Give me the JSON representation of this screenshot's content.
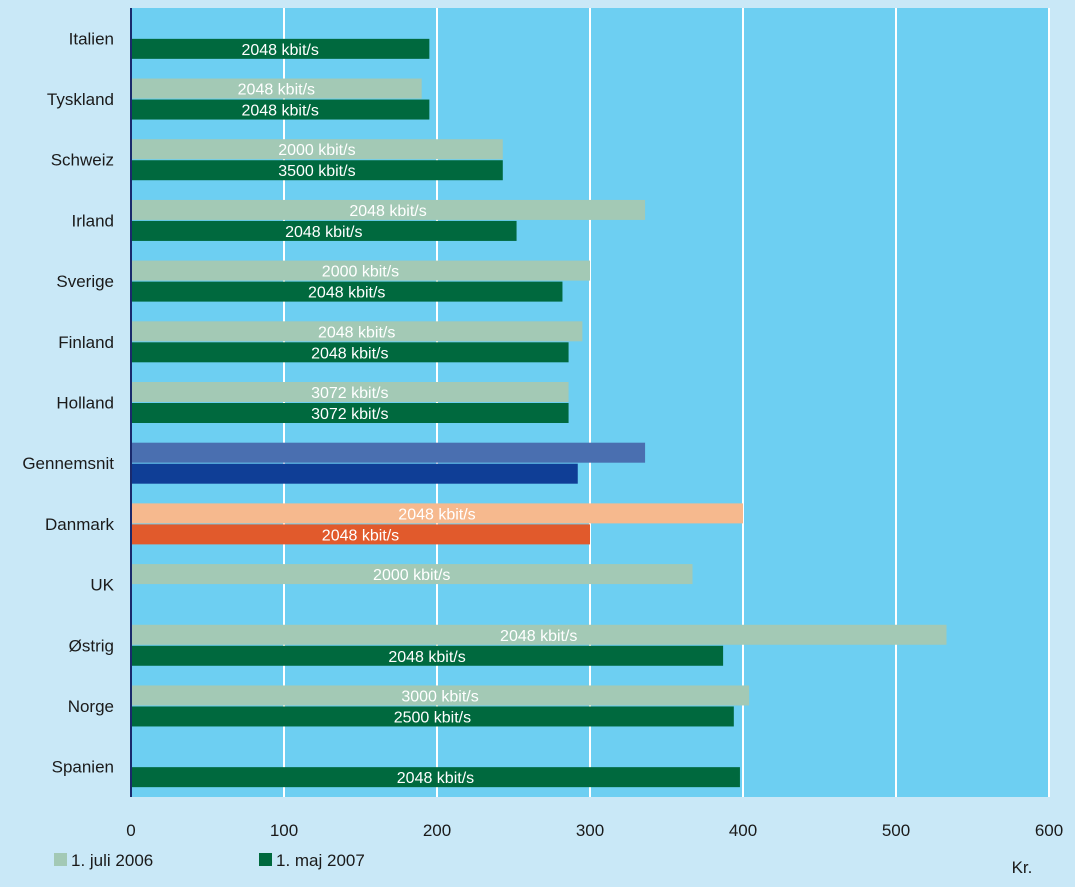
{
  "chart_data": {
    "type": "bar",
    "orientation": "horizontal",
    "categories": [
      "Italien",
      "Tyskland",
      "Schweiz",
      "Irland",
      "Sverige",
      "Finland",
      "Holland",
      "Gennemsnit",
      "Danmark",
      "UK",
      "Østrig",
      "Norge",
      "Spanien"
    ],
    "series": [
      {
        "name": "1. juli 2006",
        "color": "#a3c9b5",
        "values": [
          null,
          190,
          243,
          336,
          300,
          295,
          286,
          336,
          400,
          367,
          533,
          404,
          null
        ],
        "labels": [
          "",
          "2048 kbit/s",
          "2000 kbit/s",
          "2048 kbit/s",
          "2000 kbit/s",
          "2048 kbit/s",
          "3072 kbit/s",
          "",
          "2048 kbit/s",
          "2000 kbit/s",
          "2048 kbit/s",
          "3000 kbit/s",
          ""
        ]
      },
      {
        "name": "1. maj 2007",
        "color": "#00693e",
        "values": [
          195,
          195,
          243,
          252,
          282,
          286,
          286,
          292,
          300,
          null,
          387,
          394,
          398
        ],
        "labels": [
          "2048 kbit/s",
          "2048 kbit/s",
          "3500 kbit/s",
          "2048 kbit/s",
          "2048 kbit/s",
          "2048 kbit/s",
          "3072 kbit/s",
          "",
          "2048 kbit/s",
          "",
          "2048 kbit/s",
          "2500 kbit/s",
          "2048 kbit/s"
        ]
      }
    ],
    "highlight_colors": {
      "Gennemsnit": [
        "#4a6fb0",
        "#0f3e96"
      ],
      "Danmark": [
        "#f6b98e",
        "#e15a2c"
      ]
    },
    "xlim": [
      0,
      600
    ],
    "xticks": [
      0,
      100,
      200,
      300,
      400,
      500,
      600
    ],
    "xlabel": "Kr.",
    "grid": true,
    "legend_position": "bottom-left",
    "plot_background": "#6dcff2",
    "outer_background": "#c9e8f7"
  }
}
